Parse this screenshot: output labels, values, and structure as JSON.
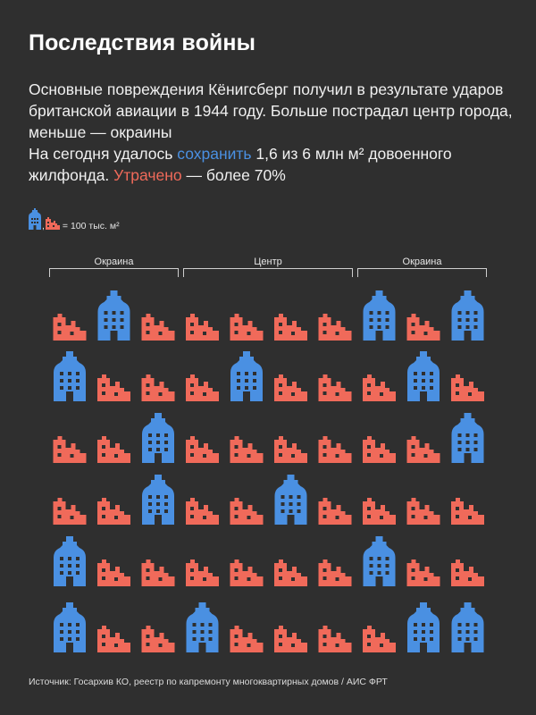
{
  "title": "Последствия войны",
  "paragraph1": "Основные повреждения Кёнигсберг получил в результате ударов британской авиации в 1944 году. Больше пострадал центр города, меньше — окраины",
  "paragraph2": {
    "part1": "На сегодня удалось ",
    "saved_word": "сохранить",
    "part2": " 1,6 из 6 млн м² довоенного жилфонда. ",
    "lost_word": "Утрачено",
    "part3": " — более 70%"
  },
  "legend": {
    "separator": ",",
    "text": "= 100 тыс. м²"
  },
  "colors": {
    "saved": "#4a90e2",
    "lost": "#f06a5a",
    "background": "#2f2f2f"
  },
  "icons": {
    "saved": "preserved-building-icon",
    "lost": "ruined-building-icon"
  },
  "chart_data": {
    "type": "table",
    "unit": "100 тыс. м²",
    "sections": [
      {
        "label": "Окраина",
        "columns": [
          0,
          1,
          2
        ]
      },
      {
        "label": "Центр",
        "columns": [
          3,
          4,
          5,
          6
        ]
      },
      {
        "label": "Окраина",
        "columns": [
          7,
          8,
          9
        ]
      }
    ],
    "grid": [
      [
        "lost",
        "saved",
        "lost",
        "lost",
        "lost",
        "lost",
        "lost",
        "saved",
        "lost",
        "saved"
      ],
      [
        "saved",
        "lost",
        "lost",
        "lost",
        "saved",
        "lost",
        "lost",
        "lost",
        "saved",
        "lost"
      ],
      [
        "lost",
        "lost",
        "saved",
        "lost",
        "lost",
        "lost",
        "lost",
        "lost",
        "lost",
        "saved"
      ],
      [
        "lost",
        "lost",
        "saved",
        "lost",
        "lost",
        "saved",
        "lost",
        "lost",
        "lost",
        "lost"
      ],
      [
        "saved",
        "lost",
        "lost",
        "lost",
        "lost",
        "lost",
        "lost",
        "saved",
        "lost",
        "lost"
      ],
      [
        "saved",
        "lost",
        "lost",
        "saved",
        "lost",
        "lost",
        "lost",
        "lost",
        "saved",
        "saved"
      ]
    ],
    "totals": {
      "saved": 16,
      "lost": 44
    }
  },
  "source": "Источник: Госархив КО, реестр по капремонту многоквартирных домов / АИС ФРТ"
}
